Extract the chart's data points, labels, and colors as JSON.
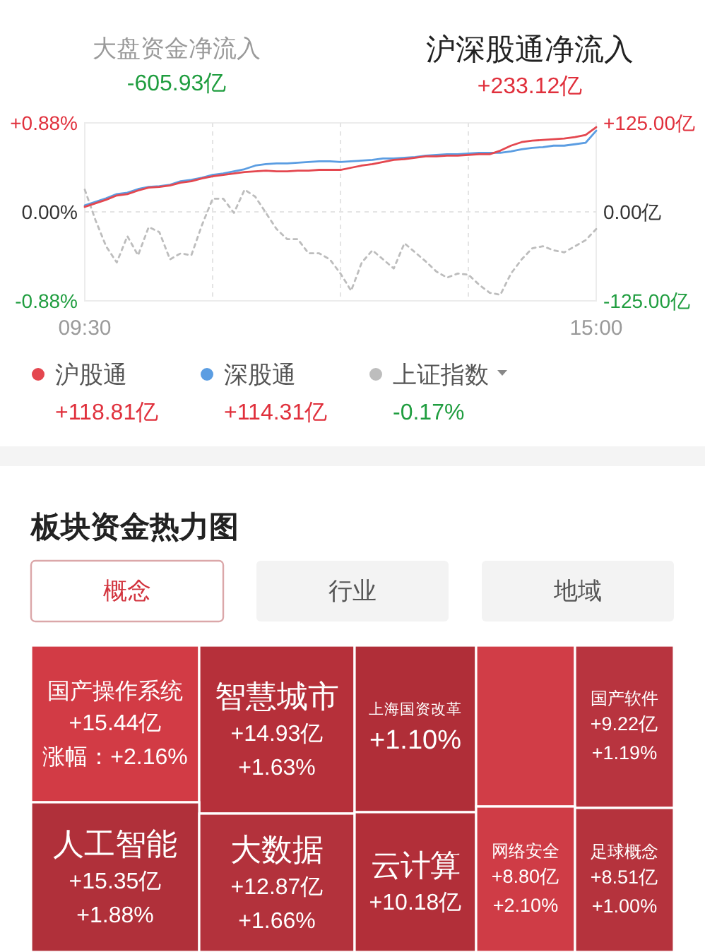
{
  "chart_data": [
    {
      "type": "line",
      "title": "沪深股通净流入",
      "subtitle": "+233.12亿",
      "annotations": [
        "大盘资金净流入",
        "-605.93亿",
        "+118.81亿",
        "+114.31亿",
        "-0.17%"
      ],
      "categories": [
        "09:30",
        null,
        null,
        null,
        null,
        null,
        null,
        null,
        null,
        null,
        null,
        null,
        null,
        null,
        null,
        null,
        null,
        null,
        null,
        null,
        null,
        null,
        null,
        null,
        null,
        null,
        null,
        null,
        null,
        null,
        null,
        null,
        null,
        null,
        null,
        null,
        null,
        null,
        null,
        null,
        null,
        null,
        null,
        null,
        null,
        null,
        null,
        null,
        "15:00"
      ],
      "ylim": [
        -0.88,
        0.88
      ],
      "yticks": [
        {
          "value": 0.88,
          "label": "+0.88%"
        },
        {
          "value": 0,
          "label": "0.00%"
        },
        {
          "value": -0.88,
          "label": "-0.88%"
        }
      ],
      "y2lim": [
        -125,
        125
      ],
      "y2ticks": [
        {
          "value": 125,
          "label": "+125.00亿"
        },
        {
          "value": 0,
          "label": "0.00亿"
        },
        {
          "value": -125,
          "label": "-125.00亿"
        }
      ],
      "grid": true,
      "legend": "bottom",
      "series": [
        {
          "name": "沪股通",
          "color": "#e4474f",
          "axis": "y2",
          "values": [
            7,
            12,
            17,
            23,
            25,
            30,
            34,
            35,
            37,
            41,
            43,
            47,
            50,
            52,
            54,
            56,
            57,
            58,
            57,
            57,
            58,
            58,
            59,
            59,
            59,
            62,
            65,
            67,
            70,
            73,
            74,
            76,
            78,
            78,
            79,
            79,
            80,
            81,
            81,
            86,
            93,
            98,
            100,
            101,
            102,
            103,
            105,
            108,
            119
          ]
        },
        {
          "name": "深股通",
          "color": "#5b9de2",
          "axis": "y2",
          "values": [
            9,
            14,
            19,
            25,
            27,
            32,
            35,
            36,
            38,
            43,
            45,
            48,
            52,
            54,
            57,
            60,
            65,
            67,
            68,
            68,
            69,
            70,
            71,
            71,
            70,
            71,
            72,
            73,
            75,
            75,
            76,
            77,
            79,
            80,
            81,
            81,
            82,
            83,
            83,
            83,
            85,
            88,
            90,
            91,
            93,
            93,
            95,
            97,
            114
          ]
        },
        {
          "name": "上证指数",
          "color": "#bdbdbd",
          "line_style": "dotted",
          "values": [
            0.22,
            -0.08,
            -0.34,
            -0.5,
            -0.24,
            -0.43,
            -0.15,
            -0.2,
            -0.47,
            -0.41,
            -0.43,
            -0.13,
            0.13,
            0.13,
            -0.01,
            0.22,
            0.15,
            -0.01,
            -0.17,
            -0.27,
            -0.27,
            -0.41,
            -0.41,
            -0.47,
            -0.61,
            -0.78,
            -0.5,
            -0.38,
            -0.47,
            -0.56,
            -0.31,
            -0.4,
            -0.49,
            -0.59,
            -0.65,
            -0.61,
            -0.62,
            -0.72,
            -0.8,
            -0.82,
            -0.61,
            -0.47,
            -0.36,
            -0.34,
            -0.38,
            -0.4,
            -0.34,
            -0.28,
            -0.17
          ]
        }
      ]
    },
    {
      "type": "other",
      "title": "板块资金热力图",
      "annotations": [
        "概念",
        "行业",
        "地域"
      ],
      "categories": [
        "国产操作系统",
        "智慧城市",
        "上海国资改革",
        null,
        "国产软件",
        "人工智能",
        "大数据",
        "云计算",
        "网络安全",
        "足球概念"
      ],
      "series": [
        {
          "values": [
            15.44,
            14.93,
            null,
            null,
            9.22,
            15.35,
            12.87,
            10.18,
            8.8,
            8.51
          ],
          "colors": [
            "#d23b45",
            "#b6303a",
            "#b02e38",
            "#d13d47",
            "#b8343f",
            "#b0303a",
            "#b3323c",
            "#b22f39",
            "#cf3c46",
            "#b5333d"
          ],
          "value_labels": [
            "+15.44亿",
            "+14.93亿",
            null,
            null,
            "+9.22亿",
            "+15.35亿",
            "+12.87亿",
            "+10.18亿",
            "+8.80亿",
            "+8.51亿"
          ]
        },
        {
          "values": [
            2.16,
            1.63,
            1.1,
            null,
            1.19,
            1.88,
            1.66,
            null,
            2.1,
            1.0
          ],
          "value_labels": [
            "涨幅：+2.16%",
            "+1.63%",
            "+1.10%",
            null,
            "+1.19%",
            "+1.88%",
            "+1.66%",
            null,
            "+2.10%",
            "+1.00%"
          ]
        }
      ]
    }
  ]
}
